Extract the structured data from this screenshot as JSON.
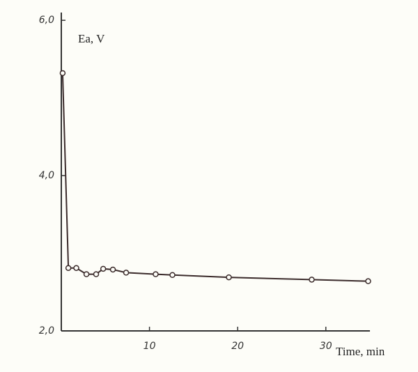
{
  "chart_data": {
    "type": "line",
    "y_label": "Ea, V",
    "x_label": "Time, min",
    "x": [
      0.15,
      0.8,
      1.7,
      2.85,
      3.95,
      4.75,
      5.85,
      7.35,
      10.7,
      12.6,
      19.0,
      28.4,
      34.8
    ],
    "series": [
      {
        "color": "#3a2a2a",
        "values": [
          5.32,
          2.81,
          2.81,
          2.73,
          2.73,
          2.8,
          2.79,
          2.75,
          2.73,
          2.72,
          2.69,
          2.66,
          2.64
        ]
      }
    ],
    "xlim": [
      0,
      35
    ],
    "ylim": [
      2,
      6.1
    ],
    "xticks": [
      10,
      20,
      30
    ],
    "yticks": [
      {
        "value": 2,
        "label": "2,0"
      },
      {
        "value": 4,
        "label": "4,0"
      },
      {
        "value": 6,
        "label": "6,0"
      }
    ],
    "grid": false
  }
}
